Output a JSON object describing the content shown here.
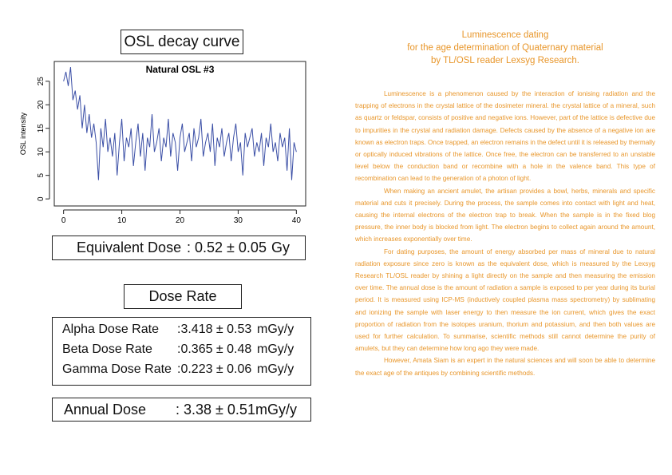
{
  "osl_title": "OSL decay curve",
  "chart_data": {
    "type": "line",
    "title": "Natural OSL #3",
    "y_label": "OSL intensity",
    "color": "#3b4fa6",
    "x": [
      0,
      0.4,
      0.8,
      1.2,
      1.6,
      2,
      2.4,
      2.8,
      3.2,
      3.6,
      4,
      4.4,
      4.8,
      5.2,
      5.6,
      6,
      6.4,
      6.8,
      7.2,
      7.6,
      8,
      8.4,
      8.8,
      9.2,
      9.6,
      10,
      10.4,
      10.8,
      11.2,
      11.6,
      12,
      12.4,
      12.8,
      13.2,
      13.6,
      14,
      14.4,
      14.8,
      15.2,
      15.6,
      16,
      16.4,
      16.8,
      17.2,
      17.6,
      18,
      18.4,
      18.8,
      19.2,
      19.6,
      20,
      20.4,
      20.8,
      21.2,
      21.6,
      22,
      22.4,
      22.8,
      23.2,
      23.6,
      24,
      24.4,
      24.8,
      25.2,
      25.6,
      26,
      26.4,
      26.8,
      27.2,
      27.6,
      28,
      28.4,
      28.8,
      29.2,
      29.6,
      30,
      30.4,
      30.8,
      31.2,
      31.6,
      32,
      32.4,
      32.8,
      33.2,
      33.6,
      34,
      34.4,
      34.8,
      35.2,
      35.6,
      36,
      36.4,
      36.8,
      37.2,
      37.6,
      38,
      38.4,
      38.8,
      39.2,
      39.6,
      40
    ],
    "values": [
      25,
      27,
      24,
      28,
      21,
      23,
      19,
      22,
      15,
      20,
      14,
      18,
      13,
      16,
      12,
      4,
      15,
      11,
      17,
      10,
      13,
      9,
      14,
      5,
      12,
      17,
      8,
      13,
      11,
      15,
      7,
      12,
      16,
      9,
      14,
      6,
      13,
      11,
      18,
      10,
      12,
      15,
      8,
      13,
      11,
      17,
      9,
      14,
      12,
      6,
      13,
      16,
      10,
      12,
      14,
      8,
      15,
      11,
      13,
      17,
      9,
      12,
      14,
      10,
      16,
      7,
      13,
      11,
      15,
      9,
      12,
      14,
      8,
      13,
      16,
      10,
      12,
      5,
      14,
      11,
      13,
      15,
      9,
      12,
      10,
      14,
      7,
      13,
      11,
      16,
      10,
      12,
      8,
      14,
      11,
      13,
      6,
      15,
      4,
      12,
      10
    ],
    "xlim": [
      -1.6,
      41.6
    ],
    "ylim": [
      -1.5,
      29.2
    ],
    "xticks": [
      0,
      10,
      20,
      30,
      40
    ],
    "yticks": [
      0,
      5,
      10,
      15,
      20,
      25
    ]
  },
  "equivalent_dose": {
    "label": "Equivalent Dose",
    "value": ": 0.52 ± 0.05",
    "unit": "Gy"
  },
  "dose_rate": {
    "title": "Dose Rate",
    "rows": [
      {
        "label": "Alpha Dose Rate",
        "value": ":3.418 ± 0.53",
        "unit": "mGy/y"
      },
      {
        "label": "Beta Dose Rate",
        "value": ":0.365 ± 0.48",
        "unit": "mGy/y"
      },
      {
        "label": "Gamma Dose Rate",
        "value": ":0.223 ± 0.06",
        "unit": "mGy/y"
      }
    ]
  },
  "annual_dose": {
    "label": "Annual Dose",
    "value": ": 3.38 ± 0.51",
    "unit": "mGy/y"
  },
  "article": {
    "heading": [
      "Luminescence dating",
      "for the age determination of Quaternary material",
      "by TL/OSL reader Lexsyg Research."
    ],
    "paragraphs": [
      "Luminescence is a phenomenon caused by the interaction of ionising radiation and the trapping of electrons in the crystal lattice of the dosimeter mineral. the crystal lattice of a mineral, such as quartz or feldspar, consists of positive and negative ions. However, part of the lattice is defective due to impurities in the crystal and radiation damage. Defects caused by the absence of a negative ion are known as electron traps. Once trapped, an electron remains in the defect until it is released by thermally or optically induced vibrations of the lattice. Once free, the electron can be transferred to an unstable level below the conduction band or recombine with a hole in the valence band. This type of recombination can lead to the generation of a photon of light.",
      "When making an ancient amulet, the artisan provides a bowl, herbs, minerals and specific material and cuts it precisely. During the process, the sample comes into contact with light and heat, causing the internal electrons of the electron trap to break. When the sample is in the fixed blog pressure, the inner body is blocked from light. The electron begins to collect again around the amount, which increases exponentially over time.",
      "For dating purposes, the amount of energy absorbed per mass of mineral due to natural radiation exposure since zero is known as the equivalent dose, which is measured by the Lexsyg Research TL/OSL reader by shining a light directly on the sample and then measuring the emission over time. The annual dose is the amount of radiation a sample is exposed to per year during its burial period. It is measured using ICP-MS (inductively coupled plasma mass spectrometry) by sublimating and ionizing the sample with laser energy to then measure the ion current, which gives the exact proportion of radiation from the isotopes uranium, thorium and potassium, and then both values are used for further calculation. To summarise, scientific methods still cannot determine the purity of amulets, but they can determine how long ago they were made.",
      "However, Amata Siam is an expert in the natural sciences and will soon be able to determine the exact age of the antiques by combining scientific methods."
    ]
  }
}
